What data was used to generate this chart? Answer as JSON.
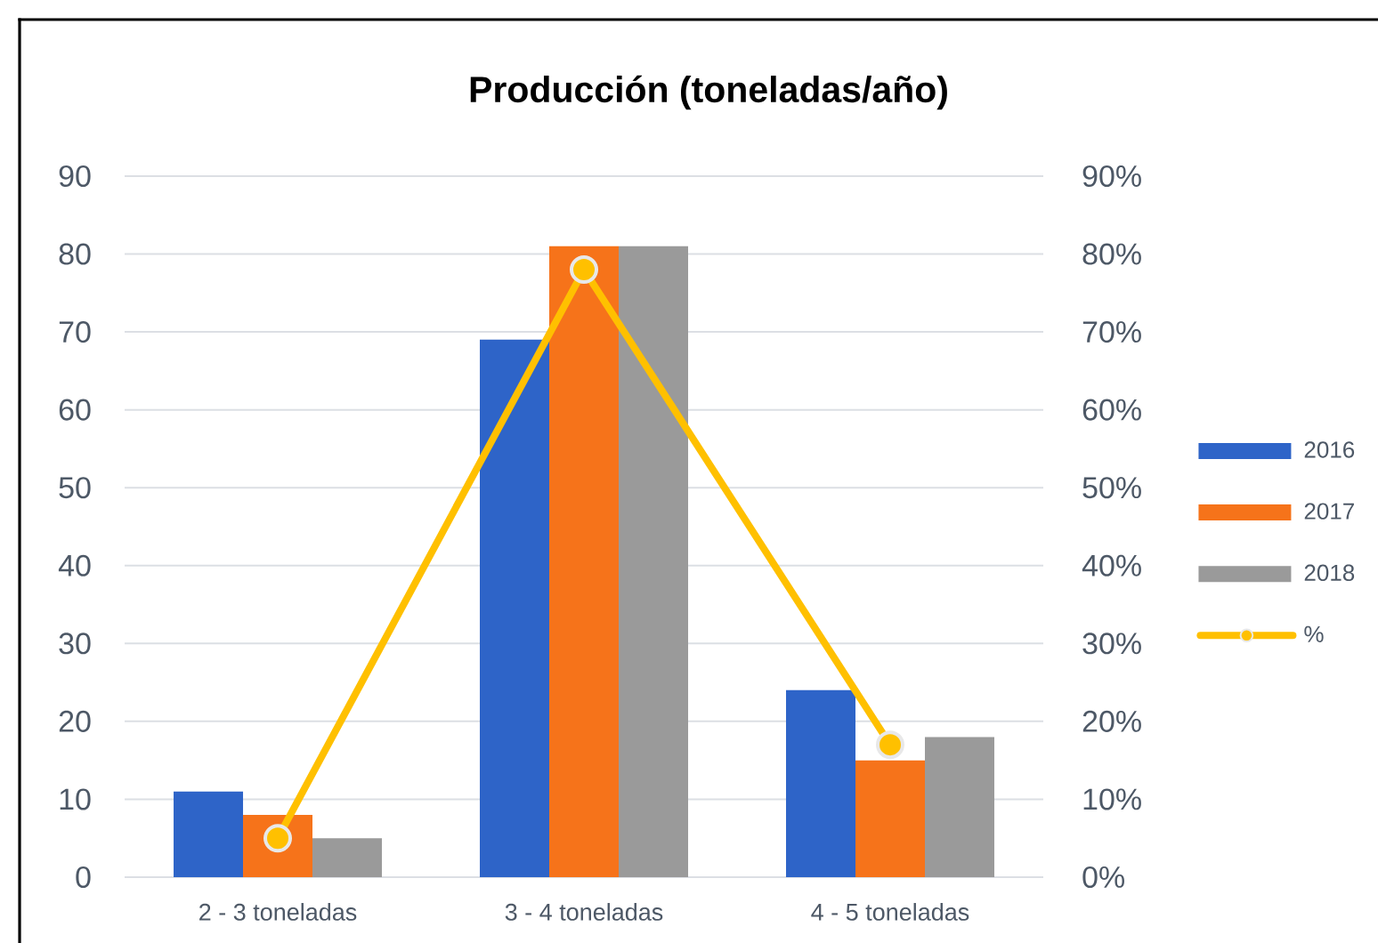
{
  "chart_data": {
    "type": "bar",
    "title": "Producción (toneladas/año)",
    "categories": [
      "2 - 3 toneladas",
      "3 - 4 toneladas",
      "4 - 5 toneladas"
    ],
    "series": [
      {
        "name": "2016",
        "color": "#2e64c8",
        "values": [
          11,
          69,
          24
        ]
      },
      {
        "name": "2017",
        "color": "#f6731a",
        "values": [
          8,
          81,
          15
        ]
      },
      {
        "name": "2018",
        "color": "#9a9a9a",
        "values": [
          5,
          81,
          18
        ]
      },
      {
        "name": "%",
        "type": "line",
        "axis": "y2",
        "color": "#ffc000",
        "marker": "circle",
        "values": [
          5,
          78,
          17
        ]
      }
    ],
    "ylim": [
      0,
      90
    ],
    "yticks": [
      0,
      10,
      20,
      30,
      40,
      50,
      60,
      70,
      80,
      90
    ],
    "y2lim": [
      0,
      90
    ],
    "y2ticks": [
      {
        "value": 0,
        "label": "0%"
      },
      {
        "value": 10,
        "label": "10%"
      },
      {
        "value": 20,
        "label": "20%"
      },
      {
        "value": 30,
        "label": "30%"
      },
      {
        "value": 40,
        "label": "40%"
      },
      {
        "value": 50,
        "label": "50%"
      },
      {
        "value": 60,
        "label": "60%"
      },
      {
        "value": 70,
        "label": "70%"
      },
      {
        "value": 80,
        "label": "80%"
      },
      {
        "value": 90,
        "label": "90%"
      }
    ],
    "grid": "y",
    "legend": "right"
  }
}
